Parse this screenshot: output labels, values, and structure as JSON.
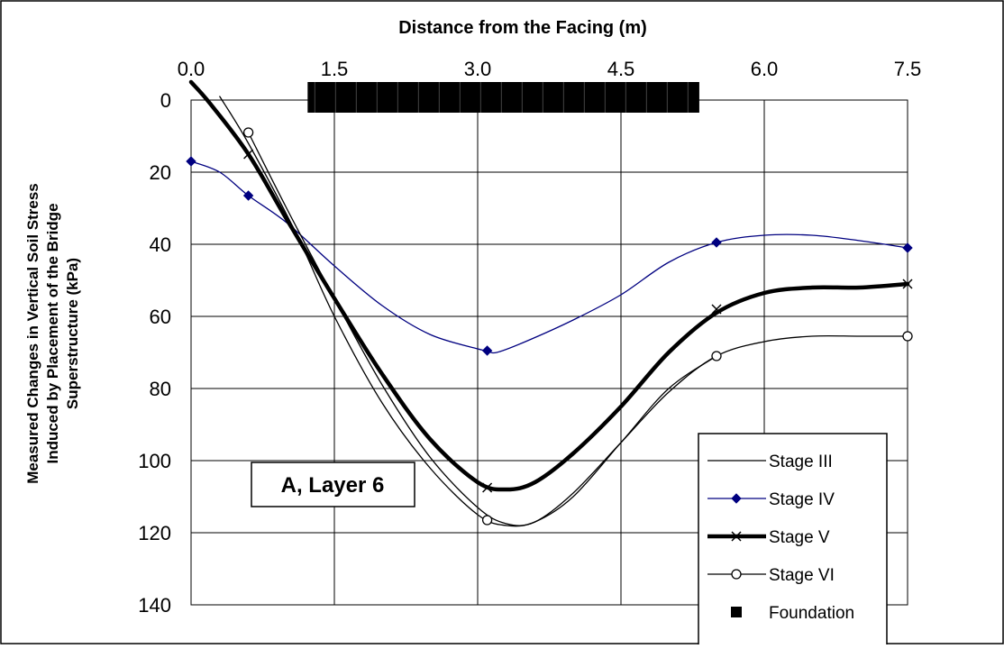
{
  "chart_data": {
    "type": "line",
    "title": "Distance from the Facing  (m)",
    "xlabel": "Distance from the Facing  (m)",
    "ylabel_lines": [
      "Measured Changes in Vertical Soil Stress",
      "Induced by Placement of the Bridge",
      "Superstructure  (kPa)"
    ],
    "xlim": [
      0,
      7.5
    ],
    "ylim": [
      0,
      140
    ],
    "y_inverted": true,
    "x_axis_position": "top",
    "x_ticks": [
      0,
      1.5,
      3,
      4.5,
      6,
      7.5
    ],
    "x_tick_labels": [
      "0.0",
      "1.5",
      "3.0",
      "4.5",
      "6.0",
      "7.5"
    ],
    "y_ticks": [
      0,
      20,
      40,
      60,
      80,
      100,
      120,
      140
    ],
    "y_tick_labels": [
      "0",
      "20",
      "40",
      "60",
      "80",
      "100",
      "120",
      "140"
    ],
    "grid": true,
    "annotation": "A, Layer 6",
    "legend_position": "bottom-right",
    "series": [
      {
        "name": "Stage III",
        "style": "thin",
        "color": "#000000",
        "marker": "none",
        "x": [
          0.3,
          0.6,
          1.1,
          1.5,
          2.0,
          2.5,
          3.0,
          3.3,
          3.6,
          4.0,
          4.5,
          5.0,
          5.5
        ],
        "y": [
          -1,
          12,
          37,
          60,
          84,
          102,
          115,
          118,
          117,
          110,
          95,
          80,
          71
        ],
        "markers_x": [],
        "markers_y": []
      },
      {
        "name": "Stage IV",
        "style": "blue",
        "color": "#000080",
        "marker": "diamond",
        "x": [
          0,
          0.3,
          0.6,
          1.0,
          1.5,
          2.0,
          2.5,
          3.0,
          3.1,
          3.2,
          3.5,
          4.0,
          4.5,
          5.0,
          5.5,
          6.0,
          6.5,
          7.0,
          7.5
        ],
        "y": [
          17,
          20,
          26.5,
          34,
          46,
          57,
          65,
          69,
          69.5,
          70,
          67,
          61,
          54,
          45,
          39.5,
          37.5,
          37.5,
          39,
          41
        ],
        "markers_x": [
          0,
          0.6,
          3.1,
          5.5,
          7.5
        ],
        "markers_y": [
          17,
          26.5,
          69.5,
          39.5,
          41
        ]
      },
      {
        "name": "Stage V",
        "style": "thick",
        "color": "#000000",
        "marker": "x",
        "x": [
          0,
          0.2,
          0.6,
          1.0,
          1.5,
          2.0,
          2.5,
          3.0,
          3.3,
          3.6,
          4.0,
          4.5,
          5.0,
          5.5,
          6.0,
          6.5,
          7.0,
          7.5
        ],
        "y": [
          -5,
          1,
          15,
          33,
          55,
          76,
          94,
          106,
          108,
          106,
          98,
          85,
          70,
          59,
          53.5,
          52,
          52,
          51
        ],
        "markers_x": [
          0.6,
          3.1,
          5.5,
          7.5
        ],
        "markers_y": [
          15,
          107.5,
          58,
          51
        ]
      },
      {
        "name": "Stage VI",
        "style": "thin",
        "color": "#000000",
        "marker": "circle",
        "x": [
          0.6,
          1.0,
          1.5,
          2.0,
          2.5,
          3.0,
          3.3,
          3.6,
          4.0,
          4.5,
          5.0,
          5.5,
          6.0,
          6.5,
          7.0,
          7.5
        ],
        "y": [
          9,
          30,
          55,
          79,
          99,
          113,
          117.5,
          117,
          109,
          95,
          81,
          71,
          67,
          65.5,
          65.5,
          65.5
        ],
        "markers_x": [
          0.6,
          3.1,
          5.5,
          7.5
        ],
        "markers_y": [
          9,
          116.5,
          71,
          65.5
        ]
      },
      {
        "name": "Foundation",
        "style": "foundation",
        "color": "#000000",
        "marker": "square",
        "x_start": 1.22,
        "x_end": 5.32,
        "y": 0
      }
    ]
  }
}
